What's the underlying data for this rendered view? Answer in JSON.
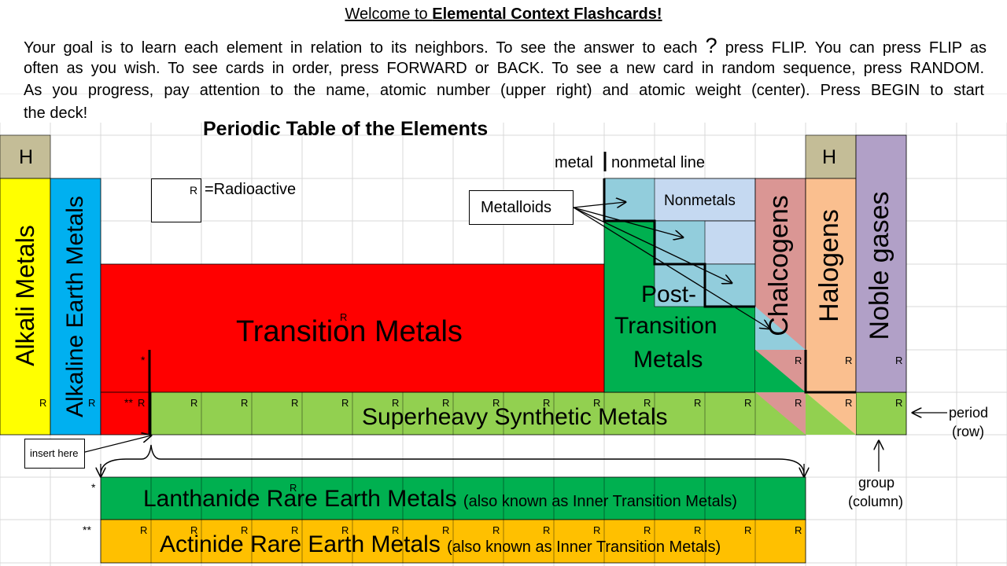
{
  "intro": {
    "welcome_prefix": "Welcome to ",
    "welcome_bold": "Elemental Context Flashcards!",
    "line1_a": "Your goal is to learn each element in relation to its neighbors. To see the answer to each ",
    "line1_q": "?",
    "line1_b": " press FLIP.  You can press FLIP as",
    "line2": "often as you wish. To see cards in order, press FORWARD or BACK.  To see a new card in random sequence, press RANDOM.",
    "line3": "As you progress, pay attention to the name, atomic number (upper right) and atomic weight (center).  Press BEGIN to start",
    "line4": "the deck!"
  },
  "table": {
    "title": "Periodic Table of the Elements",
    "h_left": "H",
    "h_right": "H",
    "legend_r": "R",
    "legend_text": "=Radioactive",
    "metal_label": "metal",
    "nonmetal_label": "nonmetal line",
    "metalloids": "Metalloids",
    "nonmetals": "Nonmetals",
    "alkali": "Alkali Metals",
    "alkaline": "Alkaline Earth Metals",
    "transition": "Transition Metals",
    "post_1": "Post-",
    "post_2": "Transition",
    "post_3": "Metals",
    "chalcogens": "Chalcogens",
    "halogens": "Halogens",
    "noble": "Noble gases",
    "superheavy": "Superheavy Synthetic Metals",
    "star": "*",
    "double_star": "**",
    "insert_here": "insert here",
    "period_1": "period",
    "period_2": "(row)",
    "group_1": "group",
    "group_2": "(column)",
    "lanthanide_main": "Lanthanide Rare Earth Metals",
    "lanthanide_aka": "(also known as Inner Transition Metals)",
    "actinide_main": "Actinide Rare Earth Metals",
    "actinide_aka": "(also known as Inner Transition Metals)",
    "r_mark": "R"
  },
  "colors": {
    "grid": "#d9d9d9",
    "hydrogen": "#c4bd97",
    "alkali": "#ffff00",
    "alkaline": "#00b0f0",
    "transition": "#ff0000",
    "post_transition": "#00b050",
    "superheavy": "#92d050",
    "metalloid": "#92cddc",
    "nonmetal": "#c5d9f1",
    "chalcogen": "#da9694",
    "halogen": "#fabf8f",
    "noble": "#b1a0c7",
    "lanthanide": "#00b050",
    "actinide": "#ffc000"
  }
}
